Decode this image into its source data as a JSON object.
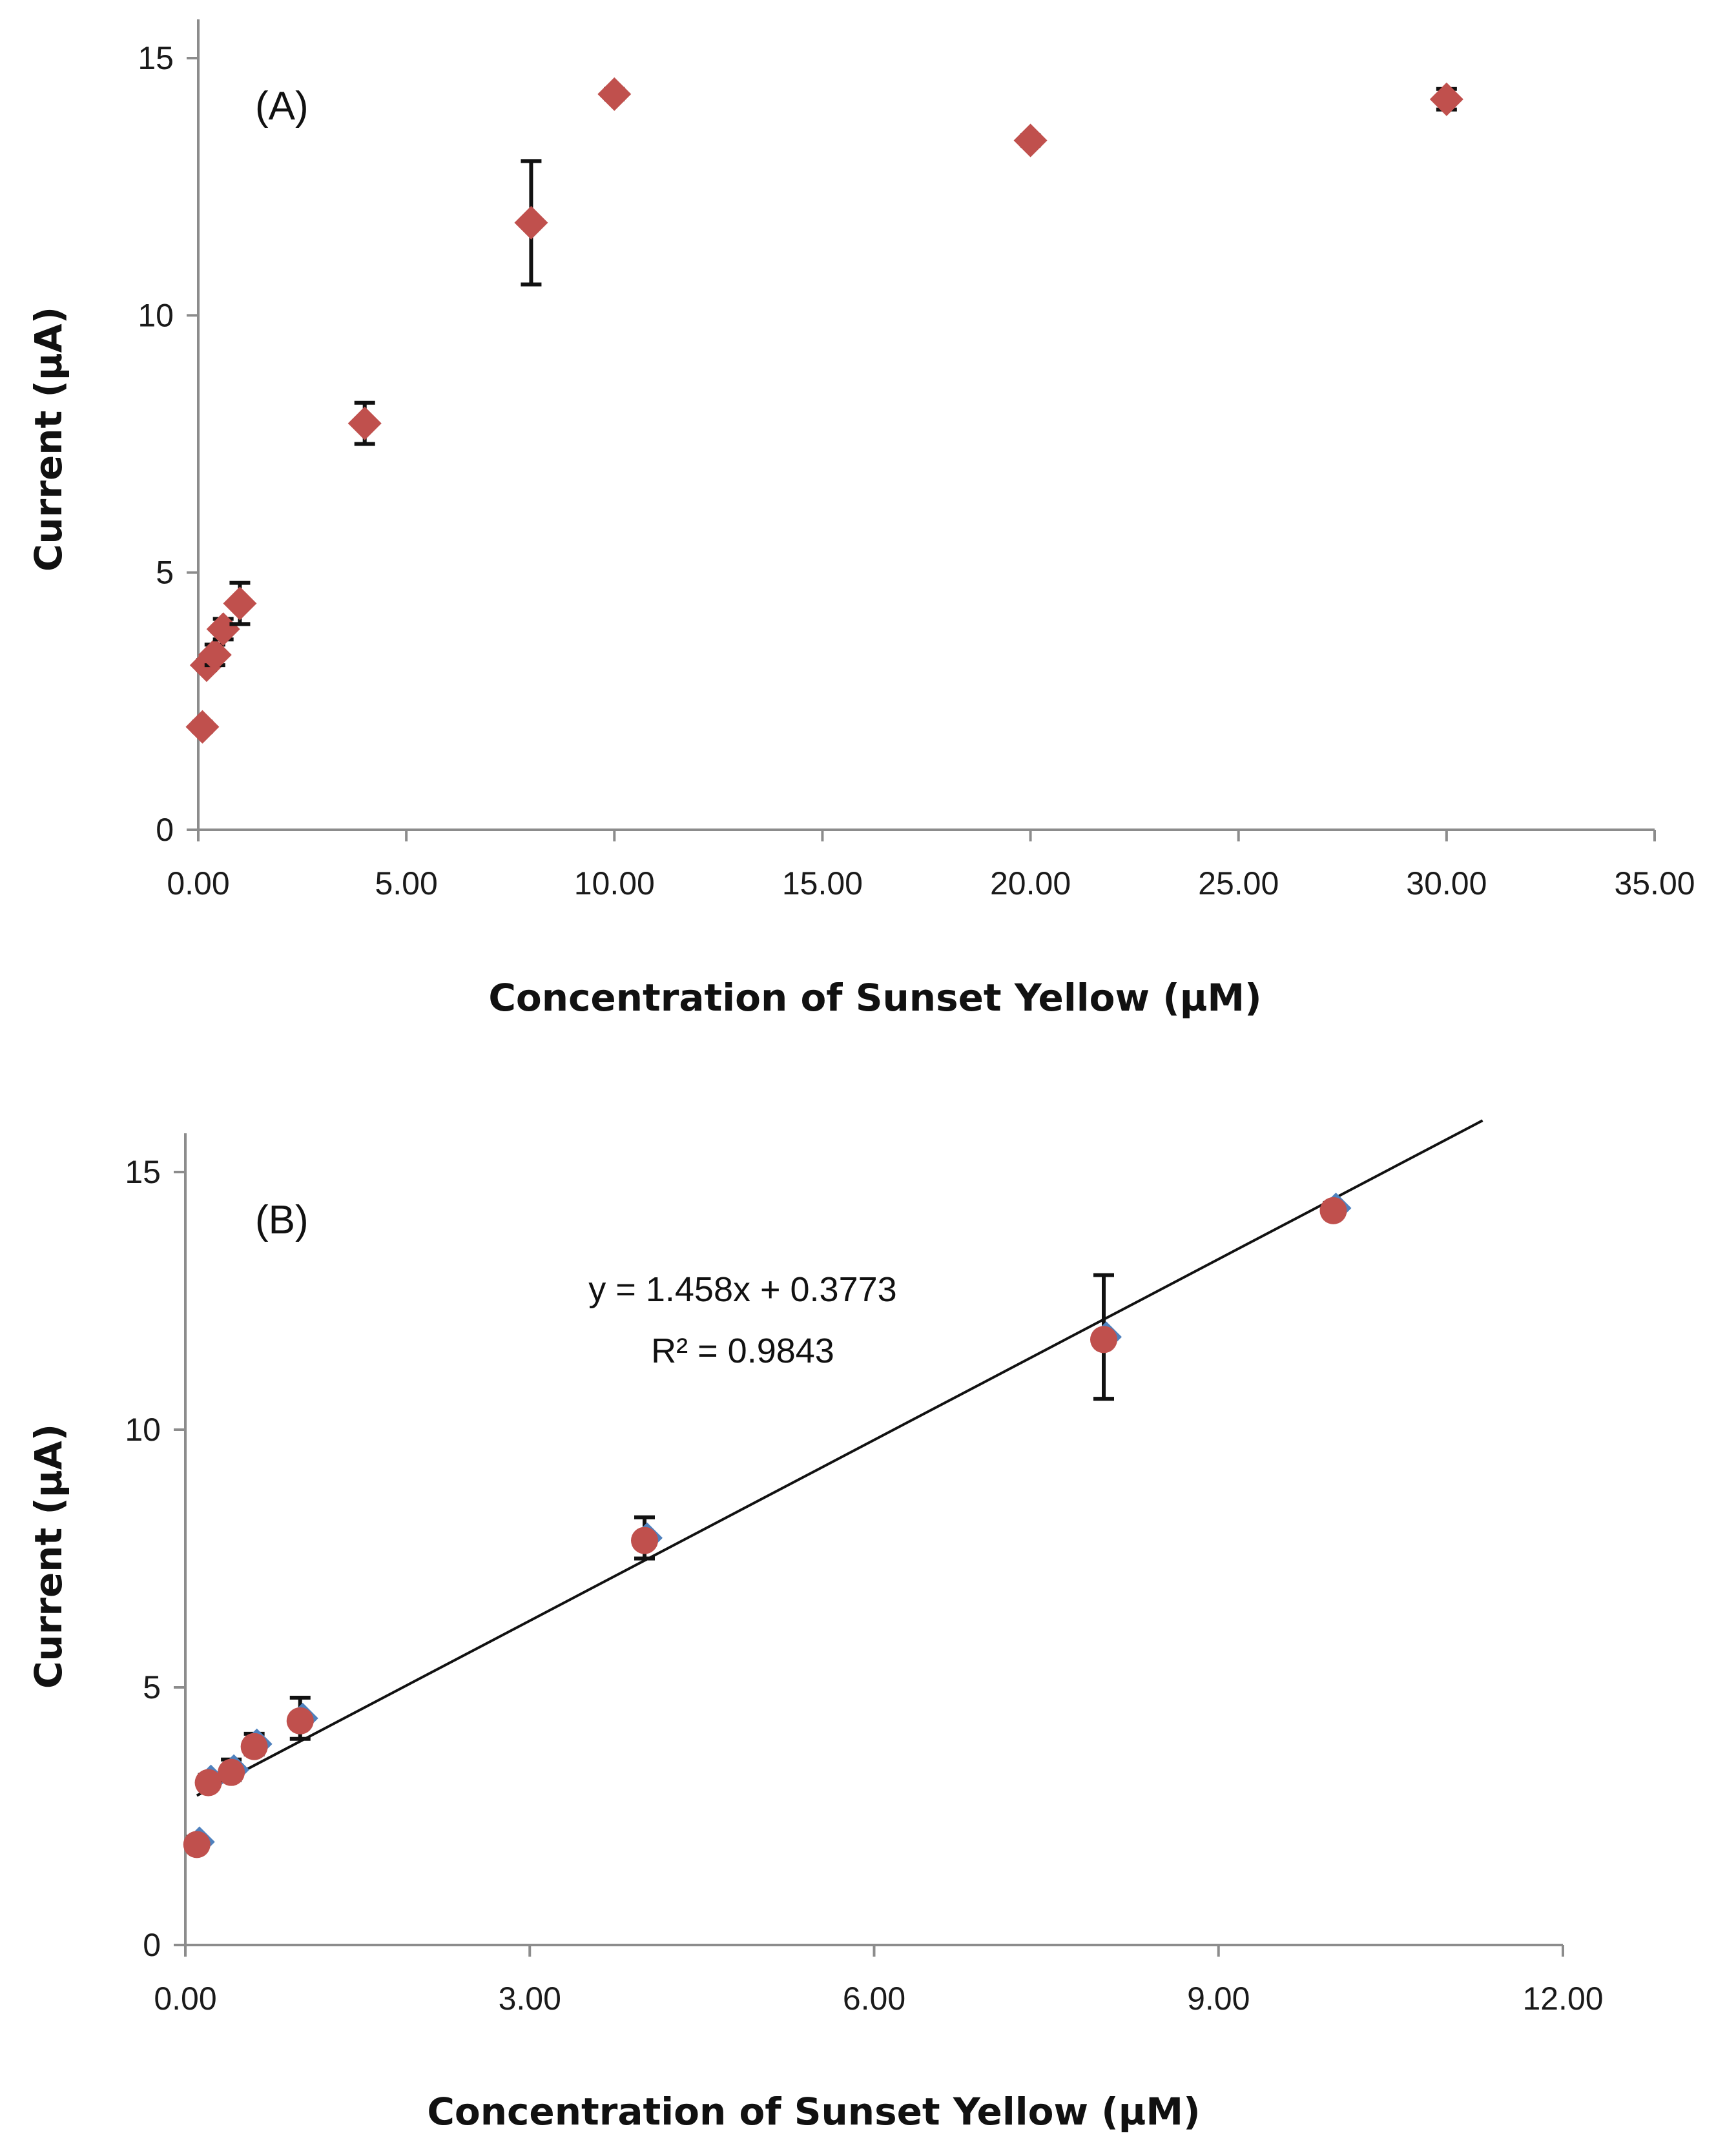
{
  "chart_data": [
    {
      "type": "scatter",
      "panel_label": "(A)",
      "xlabel": "Concentration  of Sunset Yellow (µM)",
      "ylabel": "Current  (µA)",
      "xlim": [
        0,
        35
      ],
      "ylim": [
        0,
        15
      ],
      "x_ticks": [
        "0.00",
        "5.00",
        "10.00",
        "15.00",
        "20.00",
        "25.00",
        "30.00",
        "35.00"
      ],
      "y_ticks": [
        "0",
        "5",
        "10",
        "15"
      ],
      "marker_color": "#c0504d",
      "series": [
        {
          "name": "Sunset Yellow",
          "x": [
            0.1,
            0.2,
            0.4,
            0.6,
            1.0,
            4.0,
            8.0,
            10.0,
            20.0,
            30.0
          ],
          "y": [
            2.0,
            3.2,
            3.4,
            3.9,
            4.4,
            7.9,
            11.8,
            14.3,
            13.4,
            14.2
          ],
          "error": [
            0.1,
            0.1,
            0.2,
            0.2,
            0.4,
            0.4,
            1.2,
            0.1,
            0.1,
            0.2
          ]
        }
      ]
    },
    {
      "type": "scatter",
      "panel_label": "(B)",
      "xlabel": "Concentration  of Sunset Yellow (µM)",
      "ylabel": "Current  (µA)",
      "xlim": [
        0,
        12
      ],
      "ylim": [
        0,
        15
      ],
      "x_ticks": [
        "0.00",
        "3.00",
        "6.00",
        "9.00",
        "12.00"
      ],
      "y_ticks": [
        "0",
        "5",
        "10",
        "15"
      ],
      "marker_color": "#c0504d",
      "marker_shadow_color": "#4f81bd",
      "series": [
        {
          "name": "Sunset Yellow",
          "x": [
            0.1,
            0.2,
            0.4,
            0.6,
            1.0,
            4.0,
            8.0,
            10.0
          ],
          "y": [
            2.0,
            3.2,
            3.4,
            3.9,
            4.4,
            7.9,
            11.8,
            14.3
          ],
          "error": [
            0.1,
            0.1,
            0.2,
            0.2,
            0.4,
            0.4,
            1.2,
            0.1
          ]
        }
      ],
      "trendline": {
        "slope": 1.458,
        "intercept": 0.3773,
        "x_range": [
          0.1,
          11.3
        ],
        "equation": "y = 1.458x + 0.3773",
        "r_squared": "R² = 0.9843"
      }
    }
  ]
}
